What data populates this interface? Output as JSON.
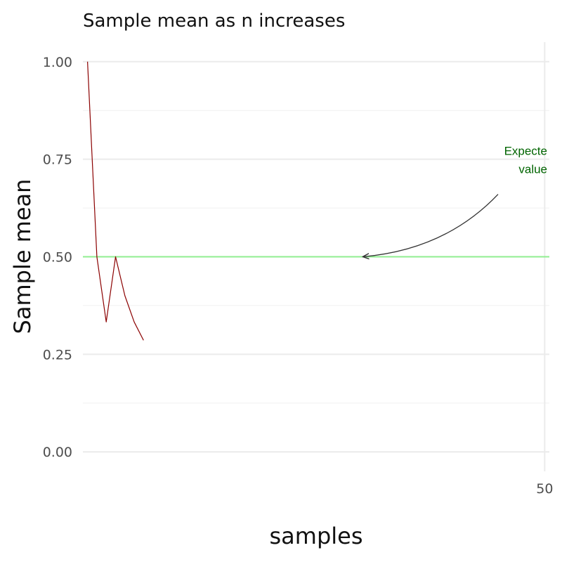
{
  "chart_data": {
    "type": "line",
    "title": "Sample mean as n increases",
    "xlabel": "samples",
    "ylabel": "Sample mean",
    "xlim": [
      0.5,
      50.5
    ],
    "ylim": [
      -0.05,
      1.05
    ],
    "x_ticks": [
      50
    ],
    "x_tick_labels": [
      "50"
    ],
    "y_ticks": [
      0,
      0.25,
      0.5,
      0.75,
      1
    ],
    "y_tick_labels": [
      "0.00",
      "0.25",
      "0.50",
      "0.75",
      "1.00"
    ],
    "grid": true,
    "series": [
      {
        "x": [
          1,
          2,
          3,
          4,
          5,
          6,
          7
        ],
        "y": [
          1.0,
          0.5,
          0.333,
          0.5,
          0.4,
          0.333,
          0.286
        ],
        "color": "#8b0000"
      }
    ],
    "reference_line": {
      "y": 0.5,
      "color": "#90ee90"
    },
    "annotation": {
      "lines": [
        "Expecte",
        "value"
      ],
      "color": "#006400",
      "text_anchor": {
        "x": 50.5,
        "y": 0.75
      },
      "arrow_start": {
        "x": 45,
        "y": 0.66
      },
      "arrow_end": {
        "x": 30.5,
        "y": 0.5
      },
      "arrow_color": "#333333"
    }
  }
}
